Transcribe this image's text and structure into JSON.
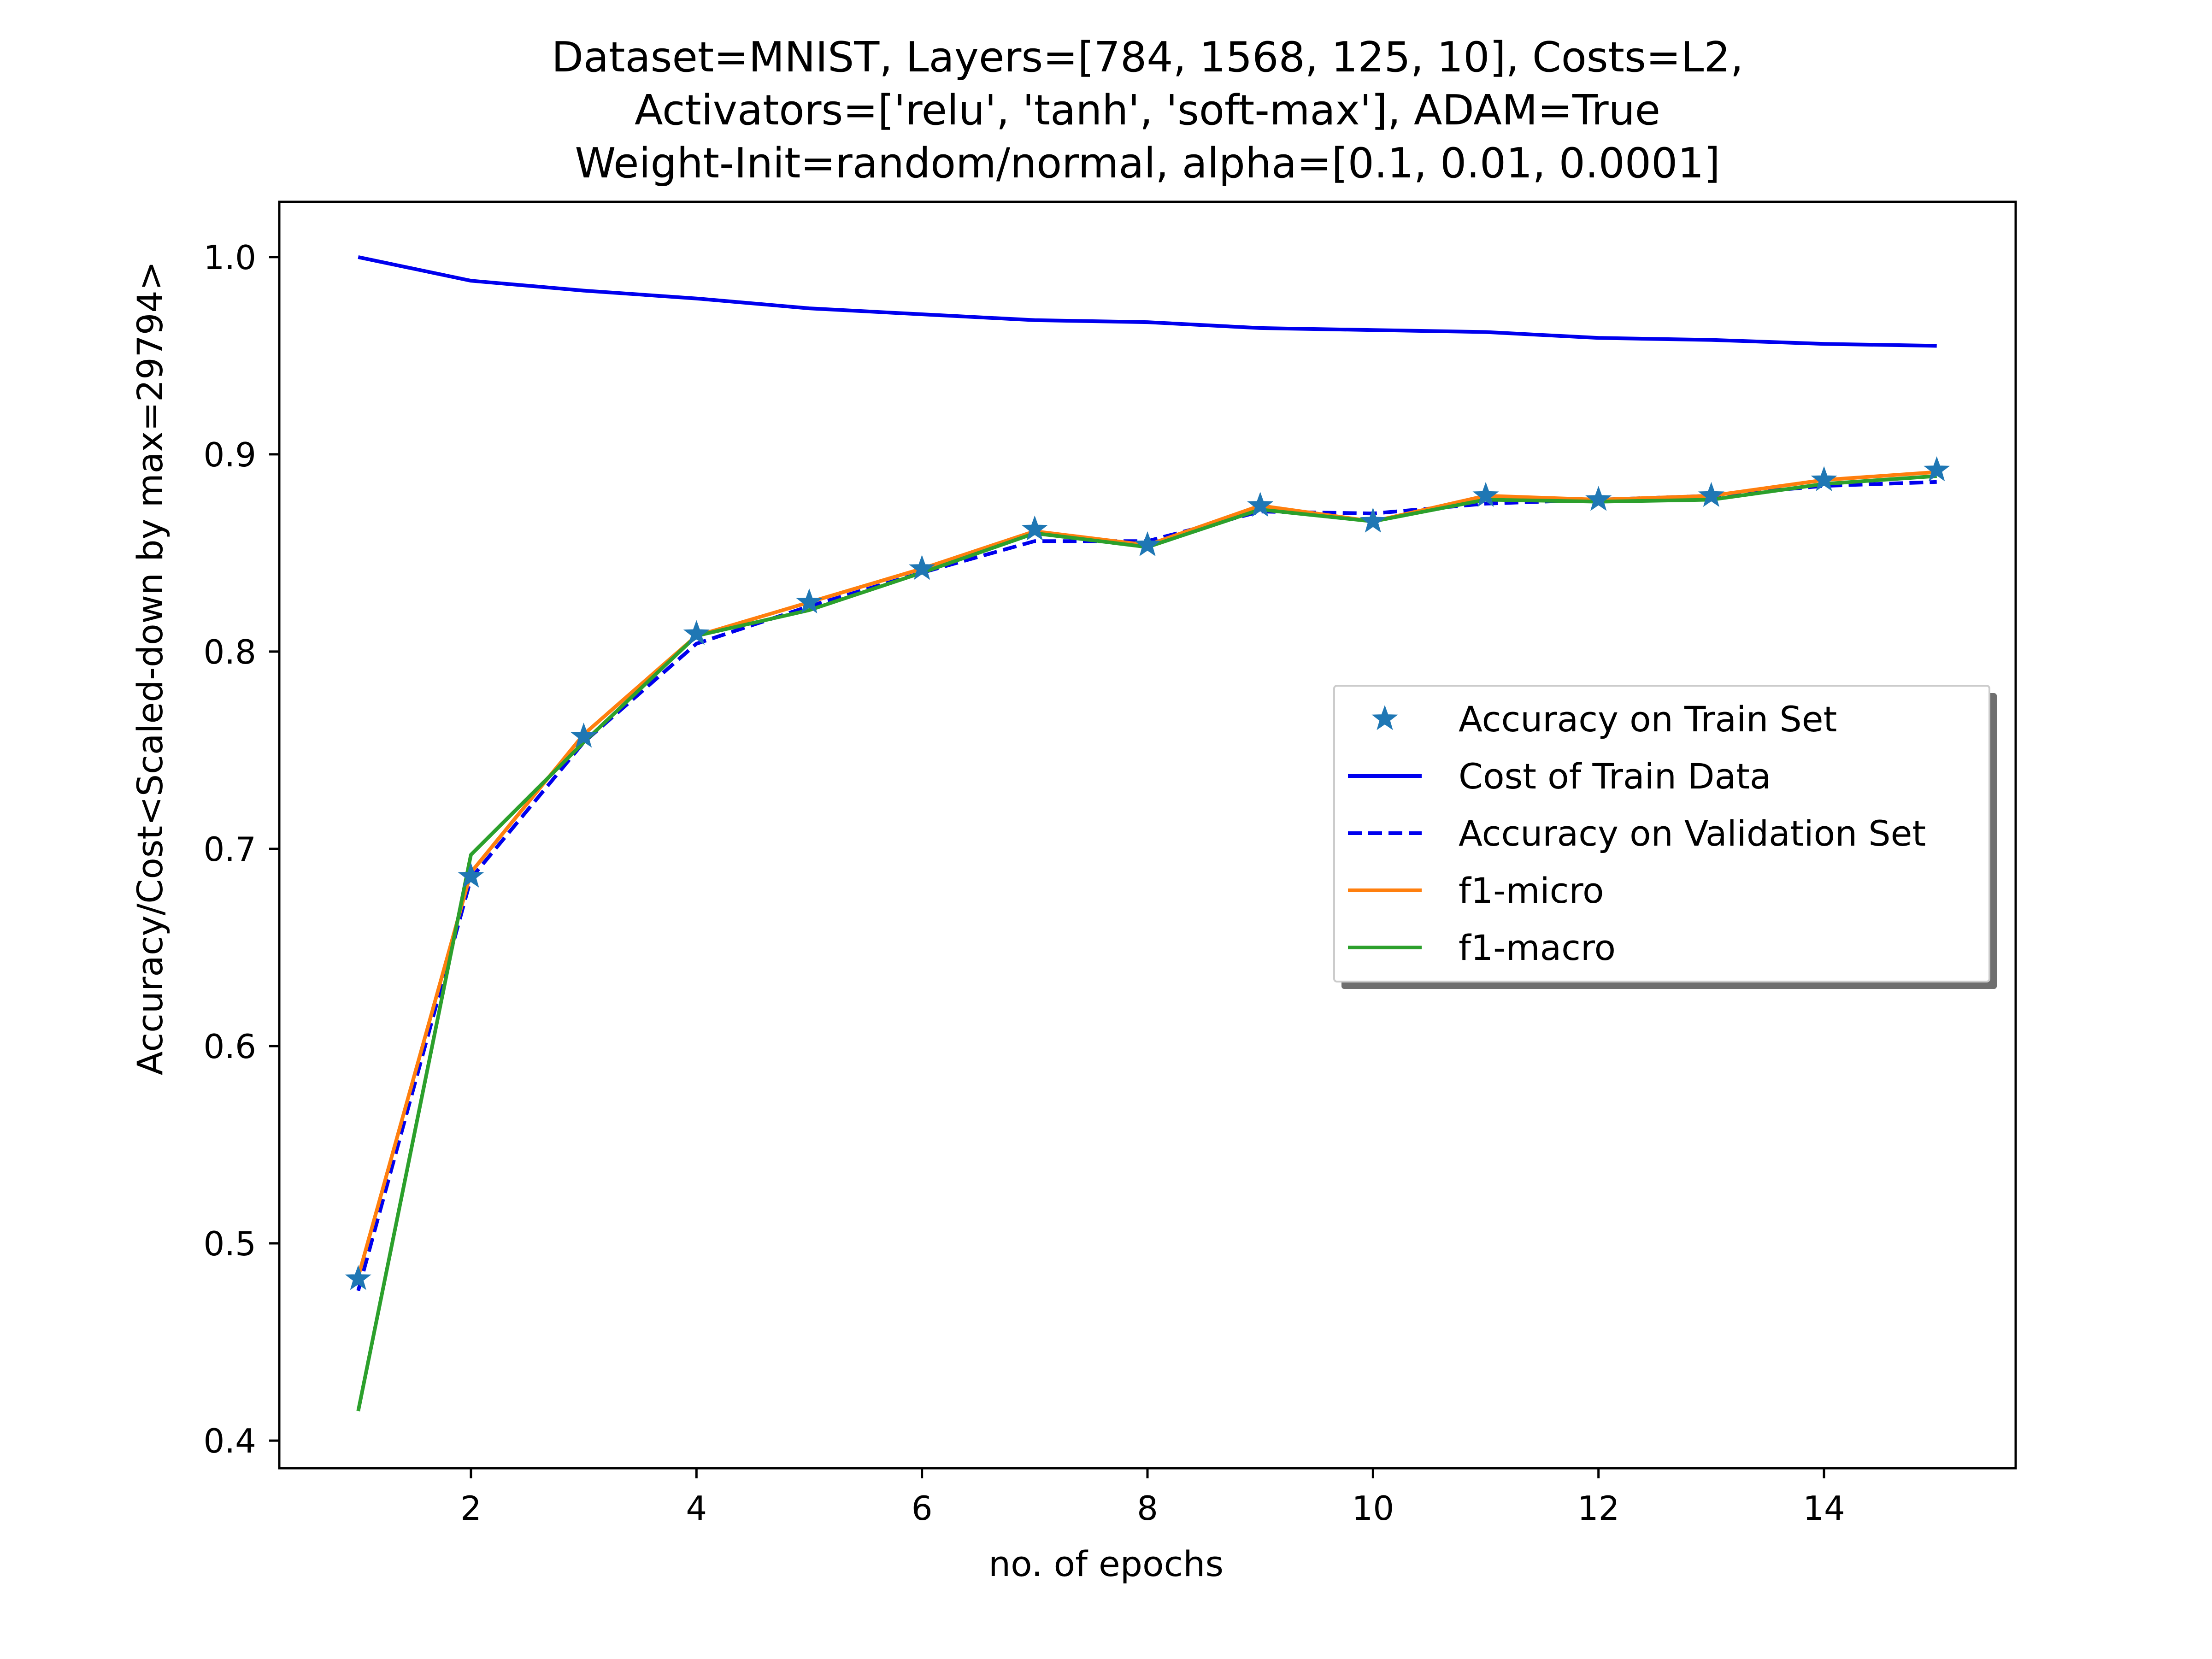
{
  "chart_data": {
    "type": "line",
    "title": [
      "Dataset=MNIST, Layers=[784, 1568, 125, 10], Costs=L2,",
      "Activators=['relu', 'tanh', 'soft-max'], ADAM=True",
      "Weight-Init=random/normal, alpha=[0.1, 0.01, 0.0001]"
    ],
    "xlabel": "no. of epochs",
    "ylabel": "Accuracy/Cost<Scaled-down by max=29794>",
    "xlim": [
      0.3,
      15.7
    ],
    "ylim": [
      0.386,
      1.028
    ],
    "x_ticks": [
      2,
      4,
      6,
      8,
      10,
      12,
      14
    ],
    "y_ticks": [
      0.4,
      0.5,
      0.6,
      0.7,
      0.8,
      0.9,
      1.0
    ],
    "y_tick_labels": [
      "0.4",
      "0.5",
      "0.6",
      "0.7",
      "0.8",
      "0.9",
      "1.0"
    ],
    "grid": false,
    "legend_position": "center-right",
    "x": [
      1,
      2,
      3,
      4,
      5,
      6,
      7,
      8,
      9,
      10,
      11,
      12,
      13,
      14,
      15
    ],
    "series": [
      {
        "name": "Accuracy on Train Set",
        "style": "marker-star",
        "color": "#1f77b4",
        "values": [
          0.482,
          0.686,
          0.757,
          0.809,
          0.825,
          0.842,
          0.862,
          0.854,
          0.874,
          0.866,
          0.879,
          0.877,
          0.879,
          0.887,
          0.892
        ]
      },
      {
        "name": "Cost of Train Data",
        "style": "solid",
        "color": "#0000ee",
        "values": [
          1.0,
          0.988,
          0.983,
          0.979,
          0.974,
          0.971,
          0.968,
          0.967,
          0.964,
          0.963,
          0.962,
          0.959,
          0.958,
          0.956,
          0.955
        ]
      },
      {
        "name": "Accuracy on Validation Set",
        "style": "dashed",
        "color": "#0000ee",
        "values": [
          0.476,
          0.685,
          0.754,
          0.804,
          0.823,
          0.84,
          0.856,
          0.856,
          0.871,
          0.87,
          0.875,
          0.877,
          0.879,
          0.884,
          0.886
        ]
      },
      {
        "name": "f1-micro",
        "style": "solid",
        "color": "#ff7f0e",
        "values": [
          0.483,
          0.688,
          0.758,
          0.808,
          0.825,
          0.842,
          0.861,
          0.854,
          0.874,
          0.866,
          0.879,
          0.877,
          0.879,
          0.887,
          0.891
        ]
      },
      {
        "name": "f1-macro",
        "style": "solid",
        "color": "#2ca02c",
        "values": [
          0.415,
          0.697,
          0.754,
          0.808,
          0.821,
          0.84,
          0.86,
          0.853,
          0.872,
          0.866,
          0.877,
          0.876,
          0.877,
          0.885,
          0.889
        ]
      }
    ]
  }
}
